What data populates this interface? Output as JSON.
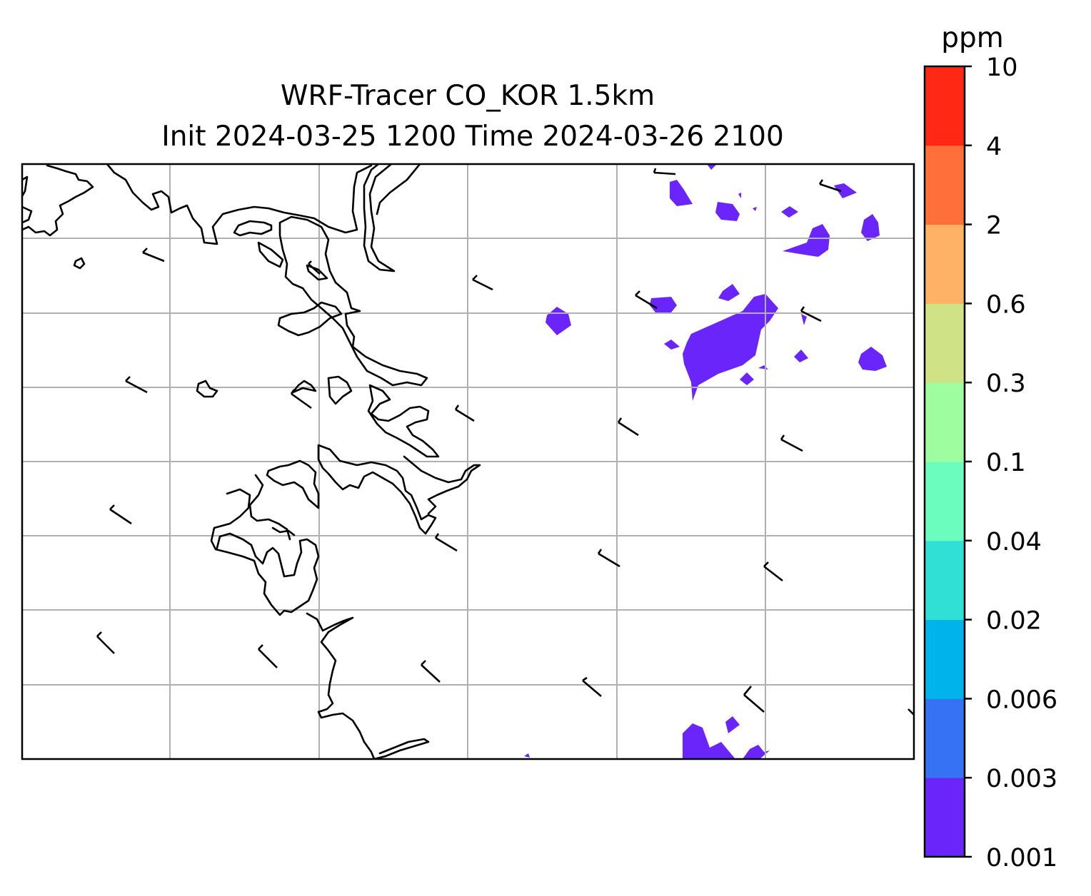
{
  "title": {
    "line1": "WRF-Tracer CO_KOR 1.5km",
    "line2": "Init 2024-03-25 1200 Time 2024-03-26 2100"
  },
  "colorbar": {
    "unit_label": "ppm",
    "levels": [
      "0.001",
      "0.003",
      "0.006",
      "0.02",
      "0.04",
      "0.1",
      "0.3",
      "0.6",
      "2",
      "4",
      "10"
    ],
    "colors": [
      "#6a25fb",
      "#3573f4",
      "#00b3ea",
      "#31e0d5",
      "#6bfdbe",
      "#9efd9f",
      "#cfe386",
      "#fdb266",
      "#fe6f3a",
      "#fe2815"
    ]
  },
  "map": {
    "gridlines": true,
    "contour_color": "#6a25fb",
    "features": [
      "coastline",
      "wind-barbs",
      "tracer-contours"
    ]
  }
}
